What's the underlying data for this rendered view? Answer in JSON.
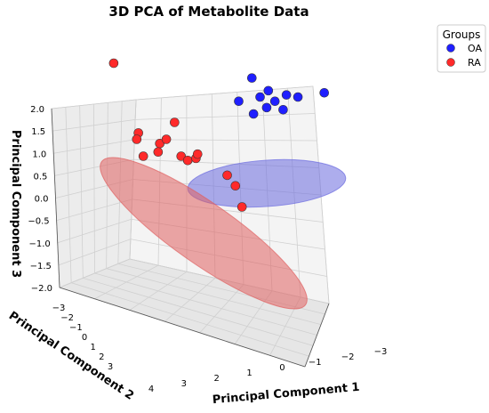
{
  "chart_data": {
    "type": "scatter",
    "projection": "3d",
    "title": "3D PCA of Metabolite Data",
    "xlabel": "Principal Component 1",
    "ylabel": "Principal Component 2",
    "zlabel": "Principal Component 3",
    "xticks": [
      "4",
      "3",
      "2",
      "1",
      "0",
      "−1",
      "−2",
      "−3"
    ],
    "yticks": [
      "−3",
      "−2",
      "−1",
      "0",
      "1",
      "2",
      "3"
    ],
    "zticks": [
      "2.0",
      "1.5",
      "1.0",
      "0.5",
      "0.0",
      "−0.5",
      "−1.0",
      "−1.5",
      "−2.0"
    ],
    "zlim": [
      -2.0,
      2.0
    ],
    "grid": true,
    "legend": {
      "title": "Groups",
      "position": "top-right"
    },
    "series": [
      {
        "name": "OA",
        "color": "#1f1fff",
        "ellipse_color": "#6a6adf",
        "points": [
          {
            "u": 1.4,
            "z": 0.55
          },
          {
            "u": 0.9,
            "z": 0.85
          },
          {
            "u": 1.15,
            "z": 0.4
          },
          {
            "u": 1.6,
            "z": 0.3
          },
          {
            "u": 1.35,
            "z": 0.15
          },
          {
            "u": 1.85,
            "z": 0.1
          },
          {
            "u": 0.5,
            "z": 0.3
          },
          {
            "u": 0.95,
            "z": 0.0
          },
          {
            "u": 1.95,
            "z": 0.45
          },
          {
            "u": 2.3,
            "z": 0.4
          },
          {
            "u": 3.1,
            "z": 0.5
          }
        ]
      },
      {
        "name": "RA",
        "color": "#ff2a2a",
        "ellipse_color": "#e06060",
        "points": [
          {
            "u": -3.3,
            "z": 1.2
          },
          {
            "u": -2.55,
            "z": -0.45
          },
          {
            "u": -2.6,
            "z": -0.6
          },
          {
            "u": -2.4,
            "z": -1.0
          },
          {
            "u": -1.9,
            "z": -0.7
          },
          {
            "u": -1.95,
            "z": -0.9
          },
          {
            "u": -1.7,
            "z": -0.6
          },
          {
            "u": -1.45,
            "z": -0.2
          },
          {
            "u": -1.25,
            "z": -1.0
          },
          {
            "u": -1.05,
            "z": -1.1
          },
          {
            "u": -0.8,
            "z": -1.05
          },
          {
            "u": -0.75,
            "z": -0.95
          },
          {
            "u": 0.15,
            "z": -1.45
          },
          {
            "u": 0.4,
            "z": -1.7
          },
          {
            "u": 0.6,
            "z": -2.2
          }
        ]
      }
    ]
  }
}
